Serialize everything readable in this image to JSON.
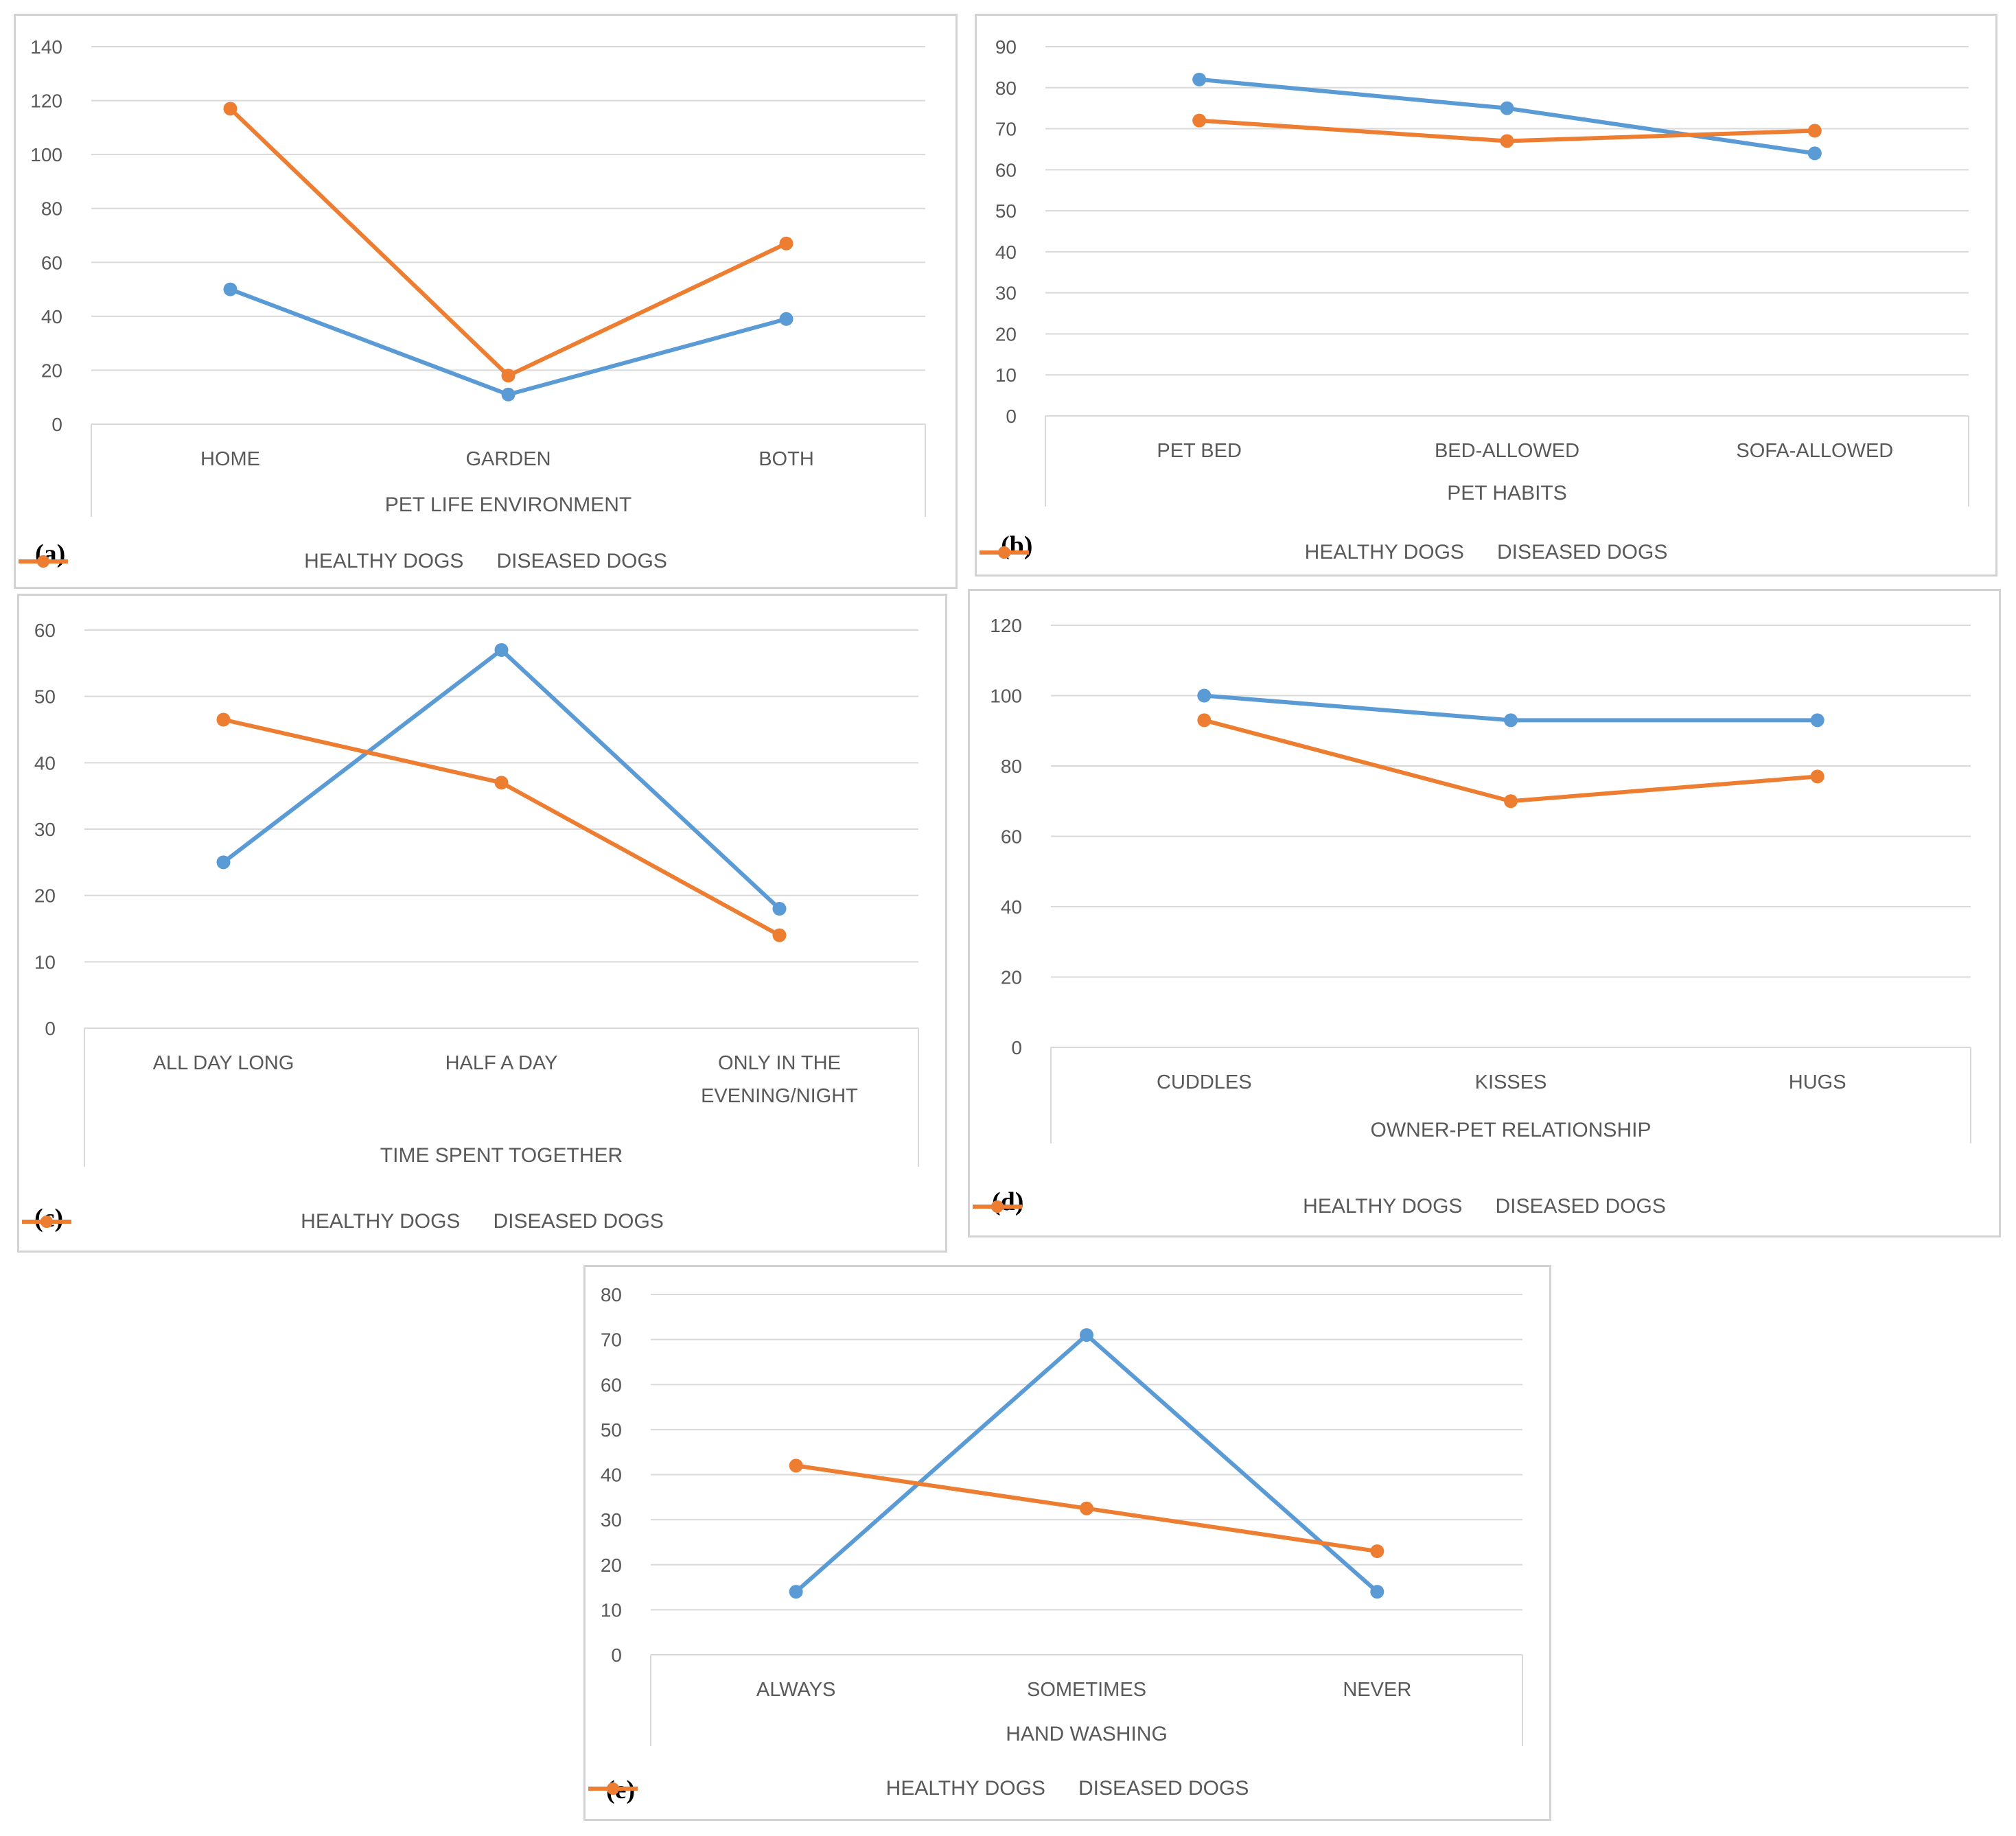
{
  "colors": {
    "healthy": "#5b9bd5",
    "diseased": "#ed7d31",
    "grid": "#d9d9d9",
    "text": "#595959"
  },
  "legend": {
    "healthy": "HEALTHY DOGS",
    "diseased": "DISEASED DOGS"
  },
  "chart_data": [
    {
      "id": "a",
      "letter": "(a)",
      "type": "line",
      "title": "",
      "xlabel": "PET LIFE ENVIRONMENT",
      "ylabel": "",
      "categories": [
        [
          "HOME"
        ],
        [
          "GARDEN"
        ],
        [
          "BOTH"
        ]
      ],
      "ylim": [
        0,
        140
      ],
      "yticks": [
        0,
        20,
        40,
        60,
        80,
        100,
        120,
        140
      ],
      "series": [
        {
          "name": "HEALTHY DOGS",
          "values": [
            50,
            11,
            39
          ]
        },
        {
          "name": "DISEASED DOGS",
          "values": [
            117,
            18,
            67
          ]
        }
      ]
    },
    {
      "id": "b",
      "letter": "(b)",
      "type": "line",
      "title": "",
      "xlabel": "PET HABITS",
      "ylabel": "",
      "categories": [
        [
          "PET BED"
        ],
        [
          "BED-ALLOWED"
        ],
        [
          "SOFA-ALLOWED"
        ]
      ],
      "ylim": [
        0,
        90
      ],
      "yticks": [
        0,
        10,
        20,
        30,
        40,
        50,
        60,
        70,
        80,
        90
      ],
      "series": [
        {
          "name": "HEALTHY DOGS",
          "values": [
            82,
            75,
            64
          ]
        },
        {
          "name": "DISEASED DOGS",
          "values": [
            72,
            67,
            69.5
          ]
        }
      ]
    },
    {
      "id": "c",
      "letter": "(c)",
      "type": "line",
      "title": "",
      "xlabel": "TIME SPENT TOGETHER",
      "ylabel": "",
      "categories": [
        [
          "ALL DAY LONG"
        ],
        [
          "HALF A DAY"
        ],
        [
          "ONLY IN THE",
          "EVENING/NIGHT"
        ]
      ],
      "ylim": [
        0,
        60
      ],
      "yticks": [
        0,
        10,
        20,
        30,
        40,
        50,
        60
      ],
      "series": [
        {
          "name": "HEALTHY DOGS",
          "values": [
            25,
            57,
            18
          ]
        },
        {
          "name": "DISEASED DOGS",
          "values": [
            46.5,
            37,
            14
          ]
        }
      ]
    },
    {
      "id": "d",
      "letter": "(d)",
      "type": "line",
      "title": "",
      "xlabel": "OWNER-PET RELATIONSHIP",
      "ylabel": "",
      "categories": [
        [
          "CUDDLES"
        ],
        [
          "KISSES"
        ],
        [
          "HUGS"
        ]
      ],
      "ylim": [
        0,
        120
      ],
      "yticks": [
        0,
        20,
        40,
        60,
        80,
        100,
        120
      ],
      "series": [
        {
          "name": "HEALTHY DOGS",
          "values": [
            100,
            93,
            93
          ]
        },
        {
          "name": "DISEASED DOGS",
          "values": [
            93,
            70,
            77
          ]
        }
      ]
    },
    {
      "id": "e",
      "letter": "(e)",
      "type": "line",
      "title": "",
      "xlabel": "HAND WASHING",
      "ylabel": "",
      "categories": [
        [
          "ALWAYS"
        ],
        [
          "SOMETIMES"
        ],
        [
          "NEVER"
        ]
      ],
      "ylim": [
        0,
        80
      ],
      "yticks": [
        0,
        10,
        20,
        30,
        40,
        50,
        60,
        70,
        80
      ],
      "series": [
        {
          "name": "HEALTHY DOGS",
          "values": [
            14,
            71,
            14
          ]
        },
        {
          "name": "DISEASED DOGS",
          "values": [
            42,
            32.5,
            23
          ]
        }
      ]
    }
  ]
}
